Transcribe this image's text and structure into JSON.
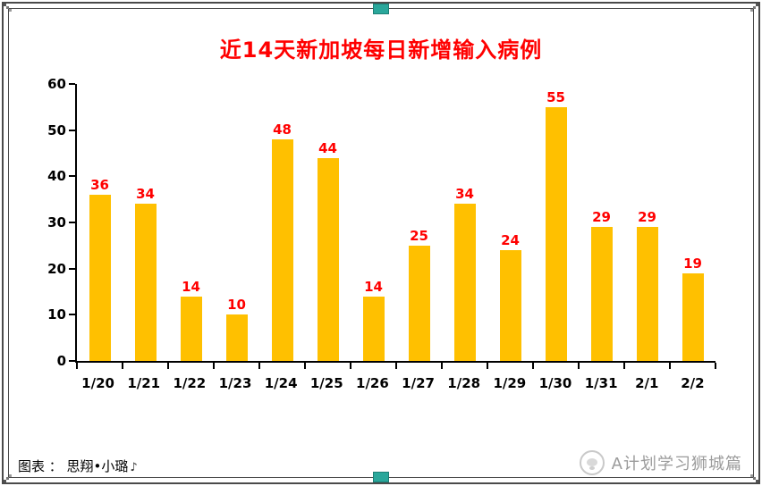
{
  "chart_data": {
    "type": "bar",
    "title": "近14天新加坡每日新增输入病例",
    "categories": [
      "1/20",
      "1/21",
      "1/22",
      "1/23",
      "1/24",
      "1/25",
      "1/26",
      "1/27",
      "1/28",
      "1/29",
      "1/30",
      "1/31",
      "2/1",
      "2/2"
    ],
    "values": [
      36,
      34,
      14,
      10,
      48,
      44,
      14,
      25,
      34,
      24,
      55,
      29,
      29,
      19
    ],
    "xlabel": "",
    "ylabel": "",
    "ylim": [
      0,
      60
    ],
    "yticks": [
      0,
      10,
      20,
      30,
      40,
      50,
      60
    ],
    "grid": false,
    "legend": "none",
    "bar_color": "#ffc000",
    "value_label_color": "#ff0000",
    "title_color": "#ff0000",
    "axis_color": "#000000"
  },
  "footer": {
    "source": "图表 ： 思翔•小璐",
    "watermark": "A计划学习狮城篇"
  },
  "frame": {
    "accent_color": "#2aa79b"
  },
  "icons": {
    "footer_note_icon": "♪"
  }
}
